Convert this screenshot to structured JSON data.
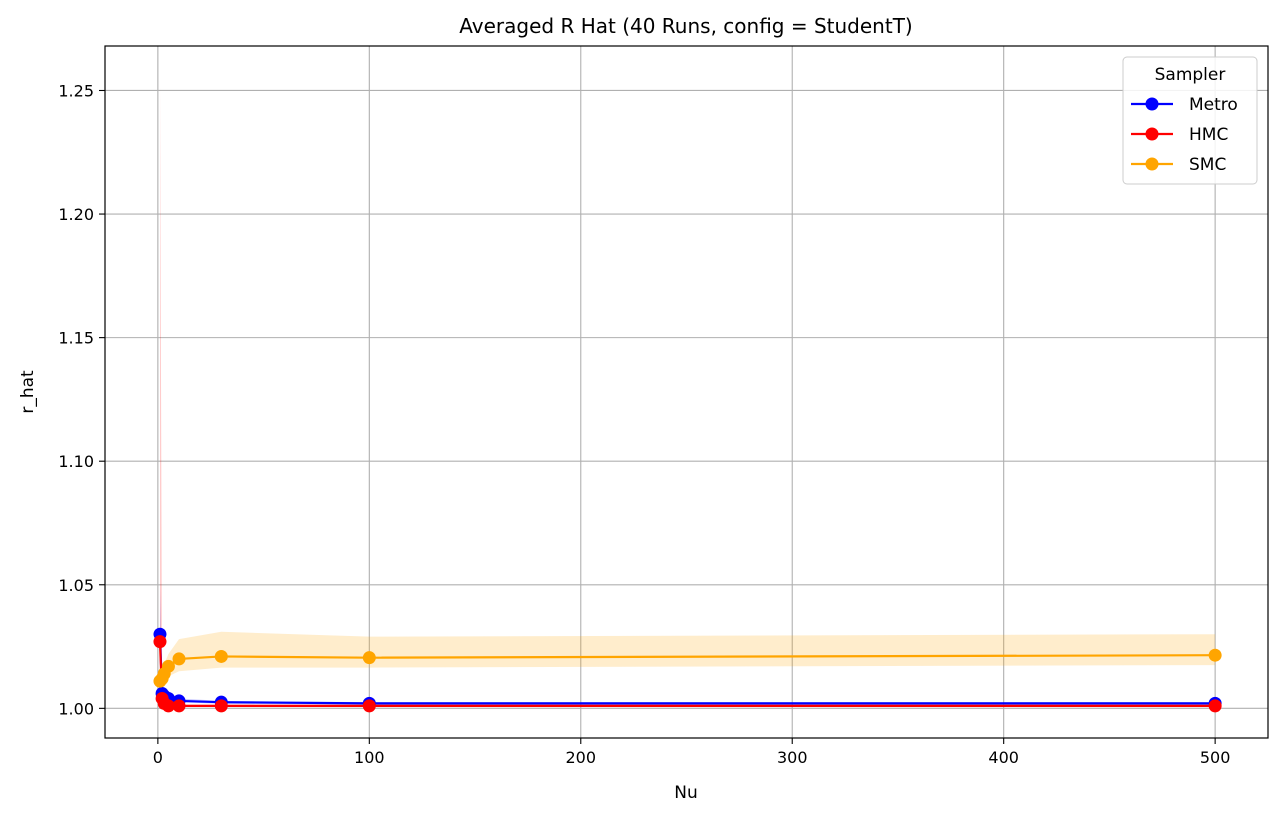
{
  "chart_data": {
    "type": "line",
    "title": "Averaged R Hat (40 Runs, config = StudentT)",
    "xlabel": "Nu",
    "ylabel": "r_hat",
    "xlim": [
      -25,
      525
    ],
    "ylim": [
      0.988,
      1.268
    ],
    "xticks": [
      0,
      100,
      200,
      300,
      400,
      500
    ],
    "yticks": [
      1.0,
      1.05,
      1.1,
      1.15,
      1.2,
      1.25
    ],
    "xtick_labels": [
      "0",
      "100",
      "200",
      "300",
      "400",
      "500"
    ],
    "ytick_labels": [
      "1.00",
      "1.05",
      "1.10",
      "1.15",
      "1.20",
      "1.25"
    ],
    "grid": true,
    "legend": {
      "title": "Sampler",
      "position": "top-right"
    },
    "x": [
      1,
      2,
      3,
      5,
      10,
      30,
      100,
      500
    ],
    "series": [
      {
        "name": "Metro",
        "color": "#0000ff",
        "values": [
          1.03,
          1.006,
          1.005,
          1.004,
          1.003,
          1.0025,
          1.002,
          1.002
        ],
        "band_lower": [
          1.024,
          1.004,
          1.004,
          1.0035,
          1.0025,
          1.0018,
          1.0015,
          1.0015
        ],
        "band_upper": [
          1.05,
          1.008,
          1.0065,
          1.005,
          1.004,
          1.003,
          1.0025,
          1.0025
        ]
      },
      {
        "name": "HMC",
        "color": "#ff0000",
        "values": [
          1.027,
          1.004,
          1.002,
          1.001,
          1.001,
          1.001,
          1.001,
          1.001
        ],
        "band_lower": [
          1.0,
          1.002,
          1.001,
          1.0005,
          1.0005,
          1.0005,
          1.0005,
          1.0005
        ],
        "band_upper": [
          1.255,
          1.006,
          1.003,
          1.0015,
          1.0015,
          1.0015,
          1.0015,
          1.0015
        ]
      },
      {
        "name": "SMC",
        "color": "#ffa500",
        "values": [
          1.011,
          1.012,
          1.014,
          1.017,
          1.02,
          1.021,
          1.0205,
          1.0215
        ],
        "band_lower": [
          1.008,
          1.009,
          1.011,
          1.013,
          1.015,
          1.0165,
          1.0165,
          1.0175
        ],
        "band_upper": [
          1.014,
          1.016,
          1.018,
          1.022,
          1.028,
          1.031,
          1.029,
          1.03
        ]
      }
    ]
  }
}
